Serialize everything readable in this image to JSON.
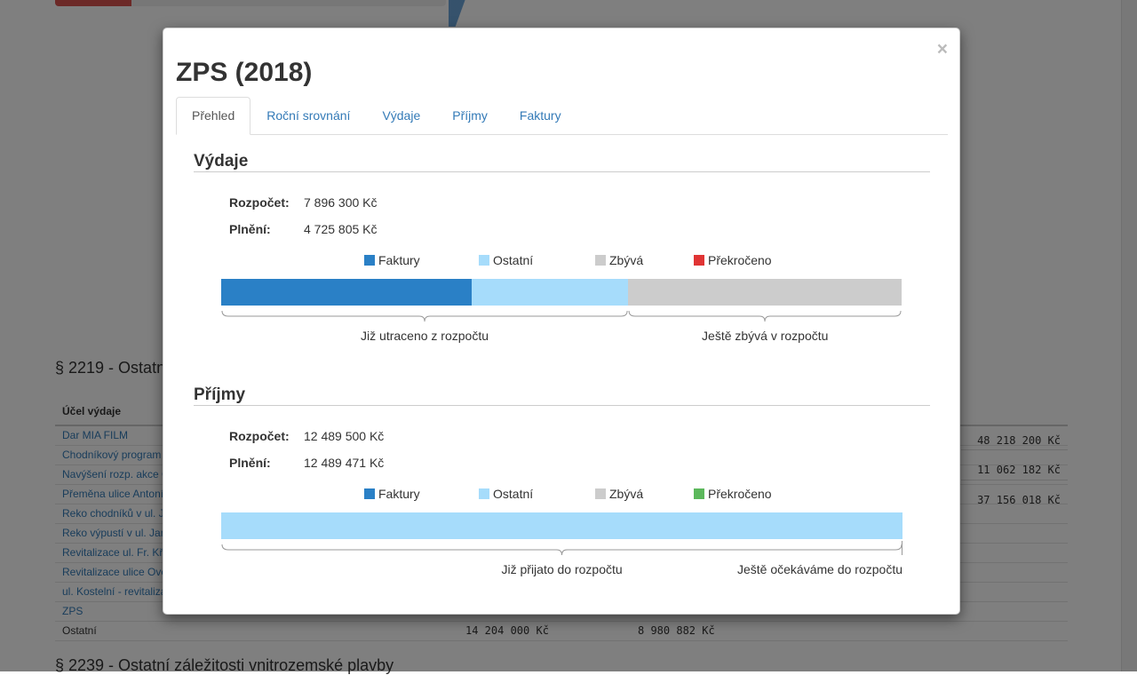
{
  "background": {
    "section1_title": "§ 2219 - Ostatní záležitosti pozemních komunikací",
    "section2_title": "§ 2239 - Ostatní záležitosti vnitrozemské plavby",
    "table_header": "Účel výdaje",
    "rows": [
      {
        "label": "Dar MIA FILM",
        "link": true
      },
      {
        "label": "Chodníkový program",
        "link": true
      },
      {
        "label": "Navýšení rozp. akce Chodníky",
        "link": true
      },
      {
        "label": "Přeměna ulice Antonínská",
        "link": true
      },
      {
        "label": "Reko chodníků v ul. Jana Masaryka",
        "link": true
      },
      {
        "label": "Reko výpustí v ul. Jana Masaryka",
        "link": true
      },
      {
        "label": "Revitalizace ul. Fr. Křižíka",
        "link": true
      },
      {
        "label": "Revitalizace ulice Ovenecká",
        "link": true
      },
      {
        "label": "ul. Kostelní - revitalizace",
        "link": true
      },
      {
        "label": "ZPS",
        "link": true
      },
      {
        "label": "Ostatní",
        "link": false,
        "col1": "14 204 000 Kč",
        "col2": "8 980 882 Kč"
      }
    ],
    "right_values": [
      "48 218 200 Kč",
      "11 062 182 Kč",
      "37 156 018 Kč"
    ]
  },
  "modal": {
    "title": "ZPS (2018)",
    "close_label": "×",
    "tabs": [
      {
        "label": "Přehled",
        "active": true
      },
      {
        "label": "Roční srovnání",
        "active": false
      },
      {
        "label": "Výdaje",
        "active": false
      },
      {
        "label": "Příjmy",
        "active": false
      },
      {
        "label": "Faktury",
        "active": false
      }
    ],
    "vydaje": {
      "heading": "Výdaje",
      "budget_label": "Rozpočet:",
      "budget_value": "7 896 300 Kč",
      "fulfil_label": "Plnění:",
      "fulfil_value": "4 725 805 Kč",
      "legend": [
        {
          "label": "Faktury",
          "color": "#2a80c6"
        },
        {
          "label": "Ostatní",
          "color": "#a6dcfb"
        },
        {
          "label": "Zbývá",
          "color": "#cccccc"
        },
        {
          "label": "Překročeno",
          "color": "#e03434"
        }
      ],
      "bar_fractions": {
        "faktury": 0.368,
        "ostatni": 0.23,
        "zbyva": 0.402
      },
      "spent_label": "Již utraceno z rozpočtu",
      "remaining_label": "Ještě zbývá v rozpočtu"
    },
    "prijmy": {
      "heading": "Příjmy",
      "budget_label": "Rozpočet:",
      "budget_value": "12 489 500 Kč",
      "fulfil_label": "Plnění:",
      "fulfil_value": "12 489 471 Kč",
      "legend": [
        {
          "label": "Faktury",
          "color": "#2a80c6"
        },
        {
          "label": "Ostatní",
          "color": "#a6dcfb"
        },
        {
          "label": "Zbývá",
          "color": "#cccccc"
        },
        {
          "label": "Překročeno",
          "color": "#5cb85c"
        }
      ],
      "bar_fractions": {
        "faktury": 0.0,
        "ostatni": 1.0,
        "zbyva": 0.0
      },
      "received_label": "Již přijato do rozpočtu",
      "expected_label": "Ještě očekáváme do rozpočtu"
    }
  }
}
